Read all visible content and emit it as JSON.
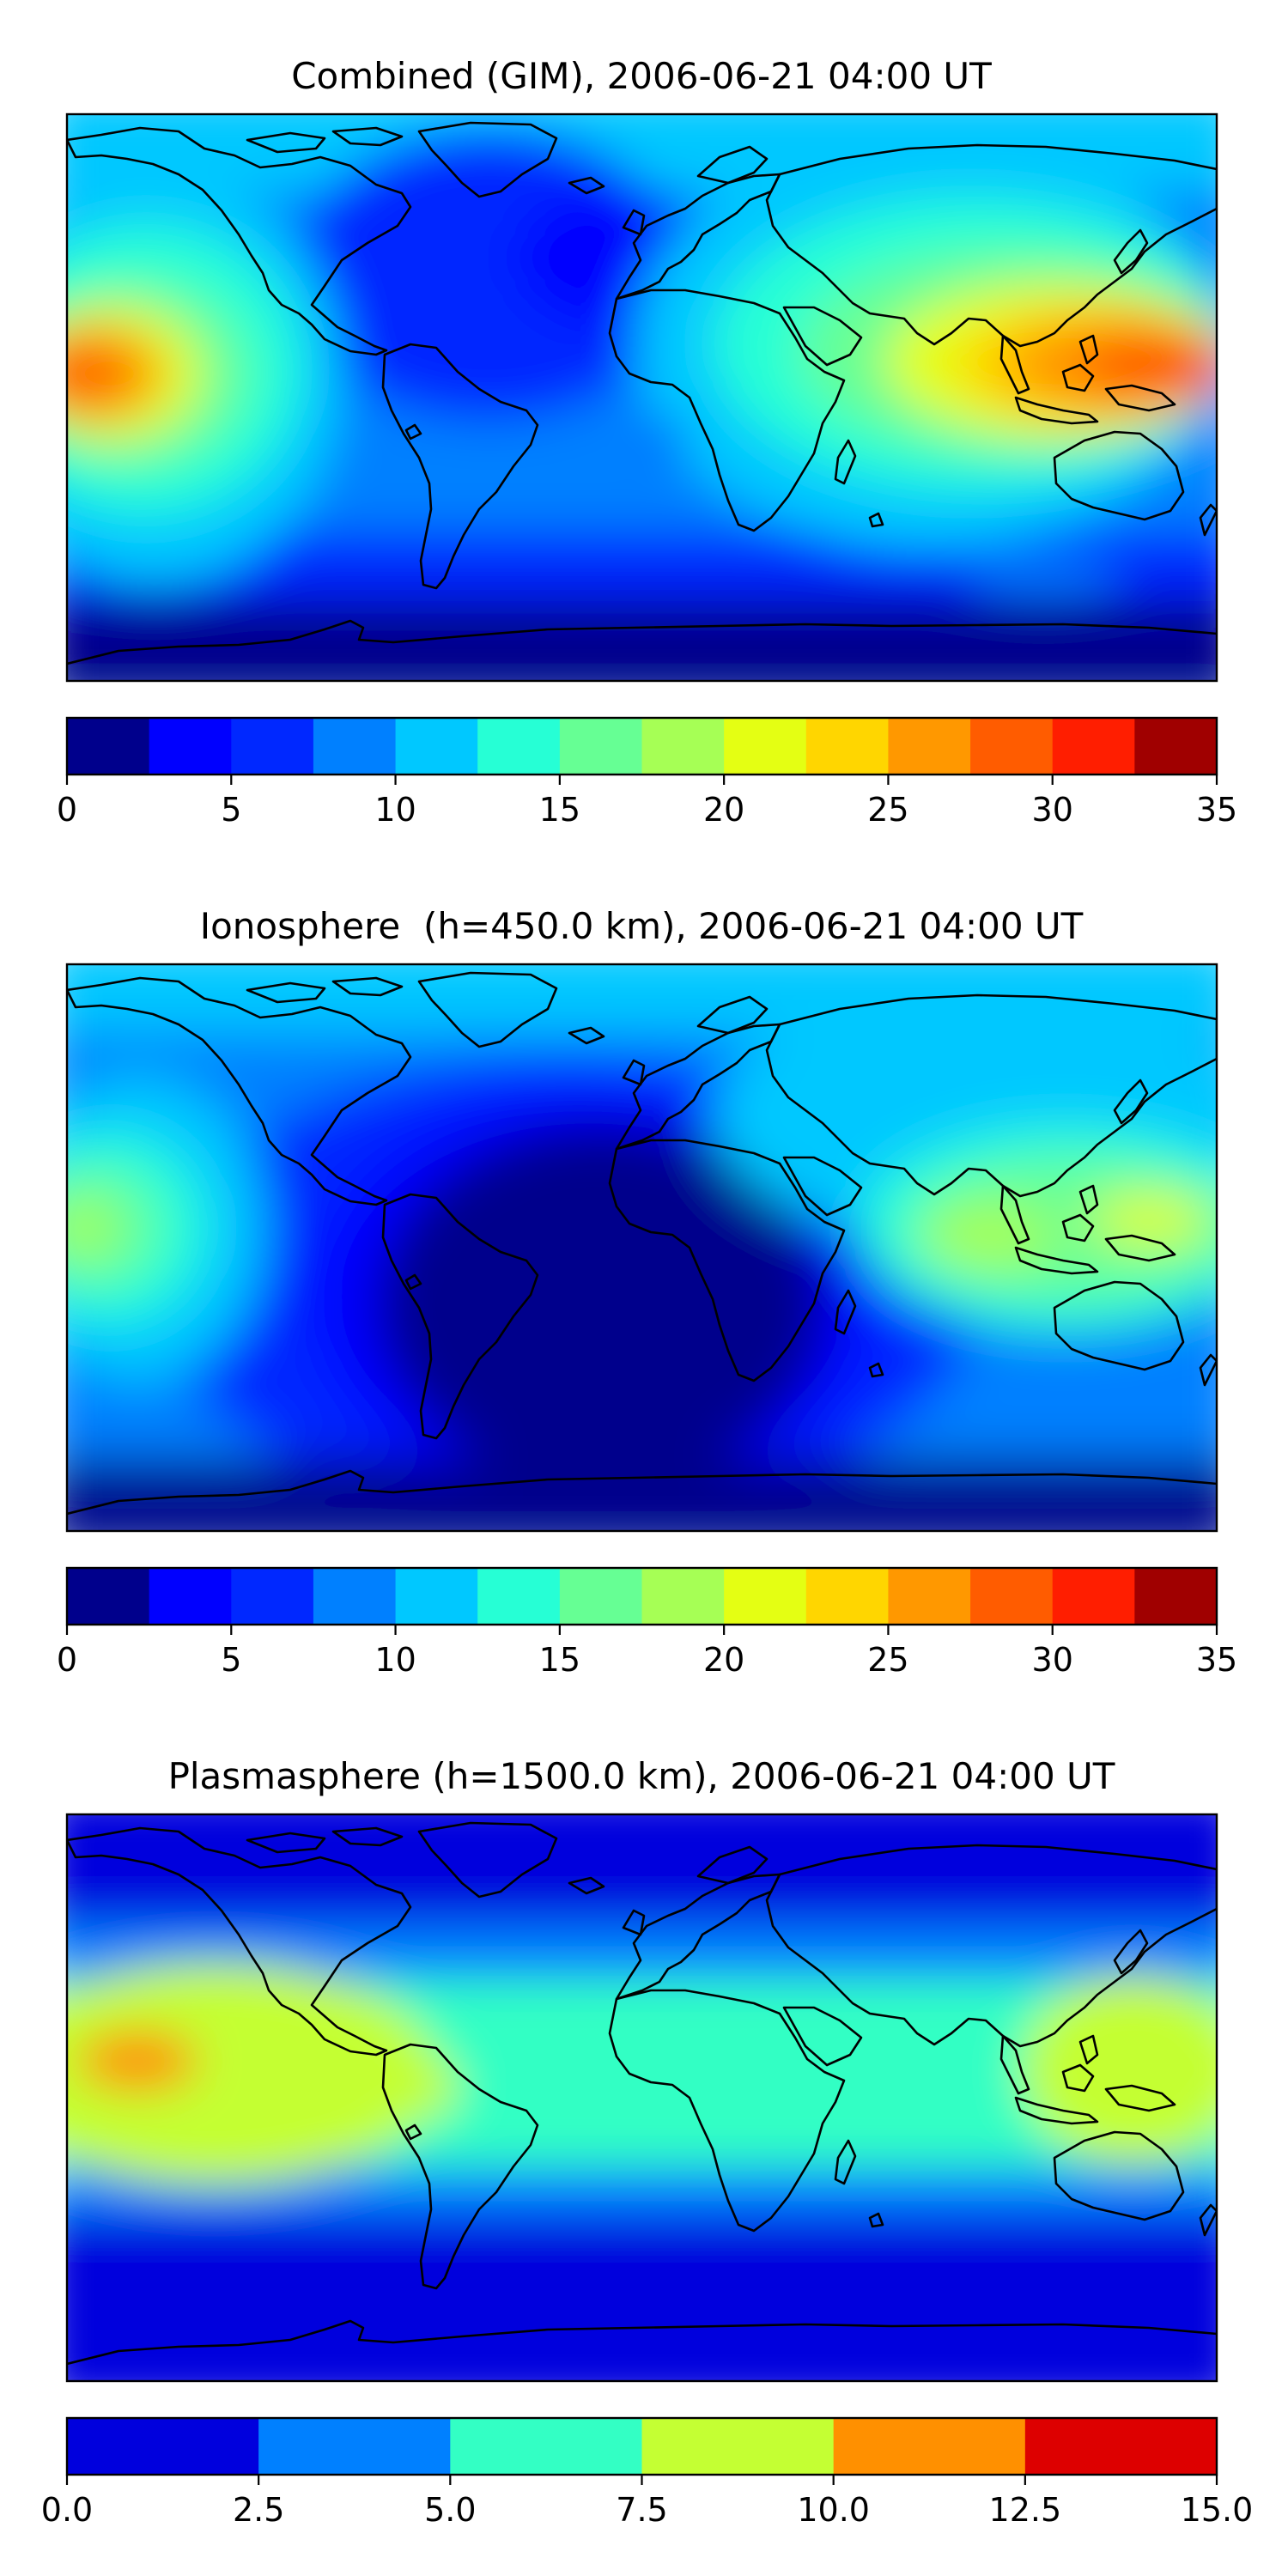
{
  "figure_title": "",
  "chart_data": [
    {
      "type": "heatmap",
      "title": "Combined (GIM), 2006-06-21 04:00 UT",
      "projection": "plate-carree world map",
      "colorbar": {
        "levels": [
          0,
          2.5,
          5,
          7.5,
          10,
          12.5,
          15,
          17.5,
          20,
          22.5,
          25,
          27.5,
          30,
          32.5,
          35
        ],
        "ticks": [
          0,
          5,
          10,
          15,
          20,
          25,
          30,
          35
        ],
        "tick_labels": [
          "0",
          "5",
          "10",
          "15",
          "20",
          "25",
          "30",
          "35"
        ],
        "colors": [
          "#00008c",
          "#0000ff",
          "#0028ff",
          "#0080ff",
          "#00c8ff",
          "#26ffd5",
          "#66ff94",
          "#a6ff55",
          "#e4ff13",
          "#ffd600",
          "#ff9800",
          "#ff5c00",
          "#ff1e00",
          "#a00000"
        ]
      },
      "features": [
        {
          "name": "Pacific maximum",
          "lon": -172,
          "lat": 0,
          "value": 27
        },
        {
          "name": "East Asia / West Pacific maximum",
          "lon": 165,
          "lat": 0,
          "value": 28
        },
        {
          "name": "Southeast Asia high",
          "lon": 110,
          "lat": 5,
          "value": 23
        },
        {
          "name": "Atlantic / Africa low",
          "lon": -30,
          "lat": 40,
          "value": 6
        },
        {
          "name": "Southern high-latitude minimum",
          "lon": 0,
          "lat": -70,
          "value": 1
        }
      ]
    },
    {
      "type": "heatmap",
      "title": "Ionosphere  (h=450.0 km), 2006-06-21 04:00 UT",
      "projection": "plate-carree world map",
      "colorbar": {
        "levels": [
          0,
          2.5,
          5,
          7.5,
          10,
          12.5,
          15,
          17.5,
          20,
          22.5,
          25,
          27.5,
          30,
          32.5,
          35
        ],
        "ticks": [
          0,
          5,
          10,
          15,
          20,
          25,
          30,
          35
        ],
        "tick_labels": [
          "0",
          "5",
          "10",
          "15",
          "20",
          "25",
          "30",
          "35"
        ],
        "colors": [
          "#00008c",
          "#0000ff",
          "#0028ff",
          "#0080ff",
          "#00c8ff",
          "#26ffd5",
          "#66ff94",
          "#a6ff55",
          "#e4ff13",
          "#ffd600",
          "#ff9800",
          "#ff5c00",
          "#ff1e00",
          "#a00000"
        ]
      },
      "features": [
        {
          "name": "Pacific maximum",
          "lon": -175,
          "lat": 5,
          "value": 18
        },
        {
          "name": "Southeast Asia / West Pacific maximum",
          "lon": 130,
          "lat": 5,
          "value": 18
        },
        {
          "name": "Atlantic / Africa minimum",
          "lon": -10,
          "lat": -10,
          "value": 1
        }
      ]
    },
    {
      "type": "heatmap",
      "title": "Plasmasphere (h=1500.0 km), 2006-06-21 04:00 UT",
      "projection": "plate-carree world map",
      "colorbar": {
        "levels": [
          0,
          2.5,
          5,
          7.5,
          10,
          12.5,
          15
        ],
        "ticks": [
          0,
          2.5,
          5,
          7.5,
          10,
          12.5,
          15
        ],
        "tick_labels": [
          "0.0",
          "2.5",
          "5.0",
          "7.5",
          "10.0",
          "12.5",
          "15.0"
        ],
        "colors": [
          "#0000dd",
          "#0080ff",
          "#33ffc4",
          "#c4ff33",
          "#ff9000",
          "#dd0000"
        ]
      },
      "features": [
        {
          "name": "Pacific maximum",
          "lon": -150,
          "lat": 14,
          "value": 11
        },
        {
          "name": "Central Pacific band",
          "lon": -140,
          "lat": 0,
          "value": 9
        },
        {
          "name": "Caribbean",
          "lon": -65,
          "lat": 8,
          "value": 8.5
        },
        {
          "name": "West Pacific",
          "lon": 160,
          "lat": 5,
          "value": 8.5
        },
        {
          "name": "Polar regions",
          "lon": 0,
          "lat": 75,
          "value": 1
        }
      ]
    }
  ]
}
